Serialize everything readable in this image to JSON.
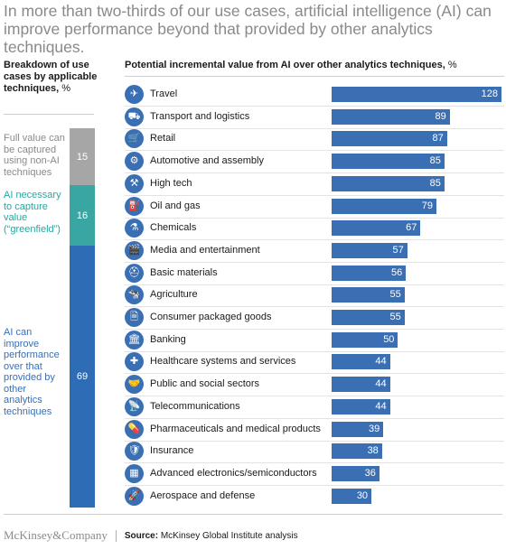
{
  "title": "In more than two-thirds of our use cases, artificial intelligence (AI) can improve performance beyond that provided by other analytics techniques.",
  "left_panel": {
    "heading": "Breakdown of use cases by applicable techniques,",
    "unit": "%",
    "segments": [
      {
        "label": "Full value can be captured using non-AI techniques",
        "value": 15,
        "color": "#a6a6a6"
      },
      {
        "label": "AI necessary to capture value (“greenfield”)",
        "value": 16,
        "color": "#3aa6a4"
      },
      {
        "label": "AI can improve performance over that provided by other analytics techniques",
        "value": 69,
        "color": "#2e6db6"
      }
    ]
  },
  "right_panel": {
    "heading": "Potential incremental value from AI over other analytics techniques,",
    "unit": "%"
  },
  "chart_data": {
    "type": "bar",
    "orientation": "horizontal",
    "bar_color": "#3a6fb4",
    "categories": [
      "Travel",
      "Transport and logistics",
      "Retail",
      "Automotive and assembly",
      "High tech",
      "Oil and gas",
      "Chemicals",
      "Media and entertainment",
      "Basic materials",
      "Agriculture",
      "Consumer packaged goods",
      "Banking",
      "Healthcare systems and services",
      "Public and social sectors",
      "Telecommunications",
      "Pharmaceuticals and medical products",
      "Insurance",
      "Advanced electronics/semiconductors",
      "Aerospace and defense"
    ],
    "values": [
      128,
      89,
      87,
      85,
      85,
      79,
      67,
      57,
      56,
      55,
      55,
      50,
      44,
      44,
      44,
      39,
      38,
      36,
      30
    ],
    "icons": [
      "airplane-icon",
      "truck-icon",
      "shopping-cart-icon",
      "car-icon",
      "robot-arm-icon",
      "oil-drop-icon",
      "flask-icon",
      "director-chair-icon",
      "hard-hat-icon",
      "cow-icon",
      "package-icon",
      "bank-icon",
      "medical-cross-icon",
      "handshake-icon",
      "signal-tower-icon",
      "pill-icon",
      "shield-icon",
      "chip-icon",
      "rocket-icon"
    ],
    "icon_glyphs": [
      "✈",
      "⛟",
      "🛒",
      "⚙",
      "⚒",
      "⛽",
      "⚗",
      "🎬",
      "⛑",
      "🐄",
      "🗎",
      "🏛",
      "✚",
      "🤝",
      "📡",
      "💊",
      "🛡",
      "▦",
      "🚀"
    ],
    "xlim": [
      0,
      128
    ],
    "grid": false,
    "legend": "none"
  },
  "footer": {
    "brand": "McKinsey&Company",
    "source_label": "Source:",
    "source_text": "McKinsey Global Institute analysis"
  }
}
